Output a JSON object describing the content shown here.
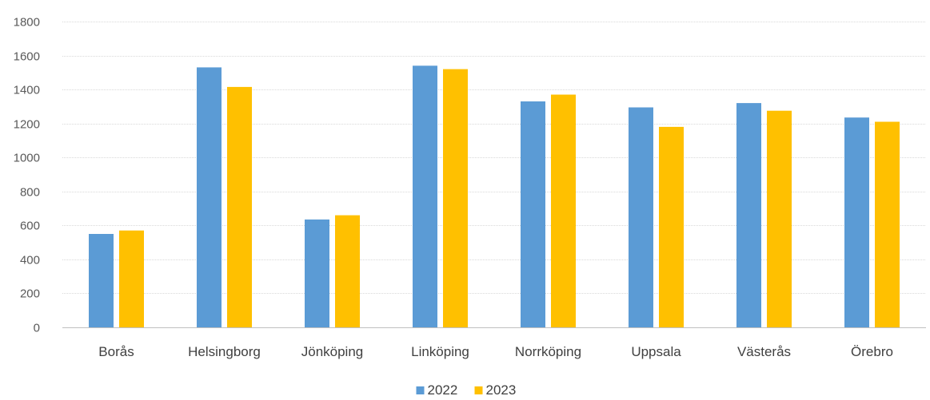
{
  "chart_data": {
    "type": "bar",
    "title": "",
    "xlabel": "",
    "ylabel": "",
    "categories": [
      "Borås",
      "Helsingborg",
      "Jönköping",
      "Linköping",
      "Norrköping",
      "Uppsala",
      "Västerås",
      "Örebro"
    ],
    "series": [
      {
        "name": "2022",
        "color": "#5b9bd5",
        "values": [
          550,
          1530,
          635,
          1540,
          1330,
          1295,
          1320,
          1235
        ]
      },
      {
        "name": "2023",
        "color": "#ffc000",
        "values": [
          570,
          1415,
          660,
          1520,
          1370,
          1180,
          1275,
          1210
        ]
      }
    ],
    "ylim": [
      0,
      1800
    ],
    "yticks": [
      0,
      200,
      400,
      600,
      800,
      1000,
      1200,
      1400,
      1600,
      1800
    ],
    "grid": true,
    "legend_position": "bottom-center"
  }
}
